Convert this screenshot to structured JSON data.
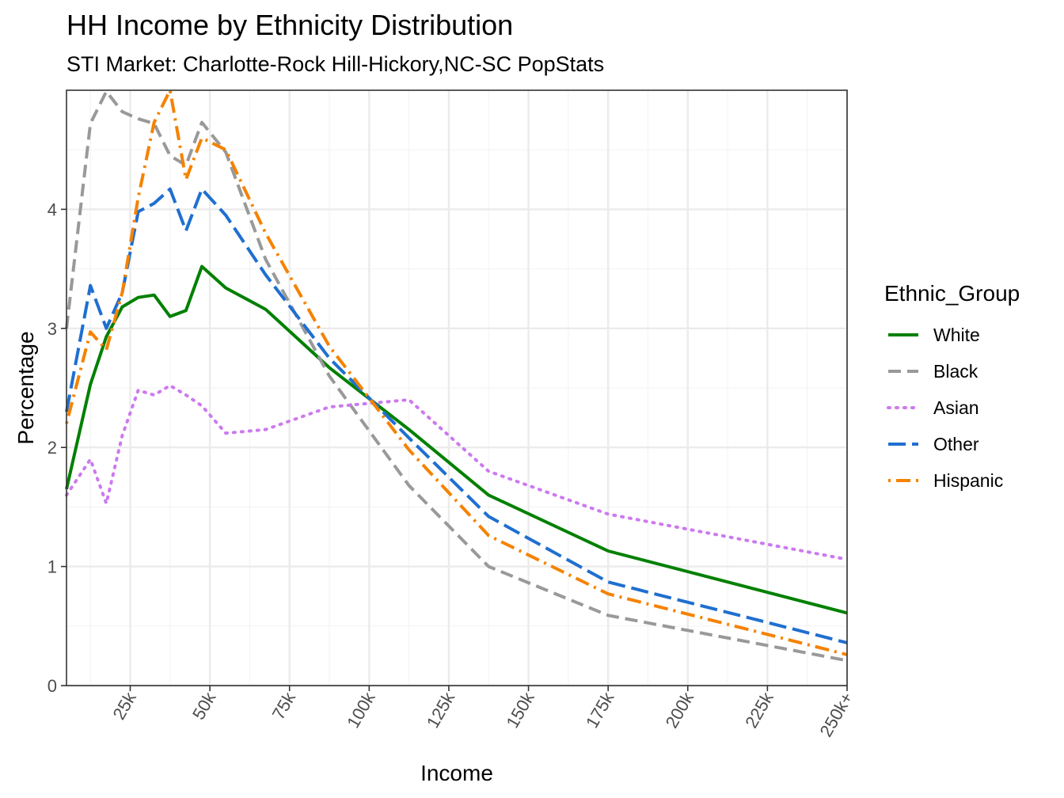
{
  "chart_data": {
    "type": "line",
    "title": "HH Income by Ethnicity Distribution",
    "subtitle": "STI Market: Charlotte-Rock Hill-Hickory,NC-SC PopStats",
    "xlabel": "Income",
    "ylabel": "Percentage",
    "xlim": [
      5,
      250
    ],
    "ylim": [
      0,
      5
    ],
    "x_ticks": [
      {
        "value": 25,
        "label": "25k"
      },
      {
        "value": 50,
        "label": "50k"
      },
      {
        "value": 75,
        "label": "75k"
      },
      {
        "value": 100,
        "label": "100k"
      },
      {
        "value": 125,
        "label": "125k"
      },
      {
        "value": 150,
        "label": "150k"
      },
      {
        "value": 175,
        "label": "175k"
      },
      {
        "value": 200,
        "label": "200k"
      },
      {
        "value": 225,
        "label": "225k"
      },
      {
        "value": 250,
        "label": "250k+"
      }
    ],
    "y_ticks": [
      0,
      1,
      2,
      3,
      4
    ],
    "grid": true,
    "legend": {
      "title": "Ethnic_Group",
      "position": "right"
    },
    "x": [
      5,
      12.5,
      17.5,
      22.5,
      27.5,
      32.5,
      37.5,
      42.5,
      47.5,
      55,
      67.5,
      87.5,
      112.5,
      137.5,
      175,
      250
    ],
    "series": [
      {
        "name": "White",
        "color": "#008000",
        "dash": "solid",
        "values": [
          1.65,
          2.53,
          2.93,
          3.18,
          3.26,
          3.28,
          3.1,
          3.15,
          3.52,
          3.34,
          3.16,
          2.67,
          2.15,
          1.6,
          1.13,
          0.61
        ]
      },
      {
        "name": "Black",
        "color": "#999999",
        "dash": "dashed",
        "values": [
          3.0,
          4.72,
          4.99,
          4.82,
          4.76,
          4.72,
          4.45,
          4.37,
          4.73,
          4.48,
          3.58,
          2.6,
          1.68,
          1.0,
          0.59,
          0.21
        ]
      },
      {
        "name": "Asian",
        "color": "#cc79f0",
        "dash": "dotted",
        "values": [
          1.6,
          1.9,
          1.53,
          2.1,
          2.48,
          2.44,
          2.52,
          2.44,
          2.35,
          2.12,
          2.15,
          2.34,
          2.4,
          1.8,
          1.44,
          1.06
        ]
      },
      {
        "name": "Other",
        "color": "#1f6fd0",
        "dash": "longdash",
        "values": [
          2.3,
          3.36,
          3.0,
          3.3,
          3.98,
          4.05,
          4.17,
          3.82,
          4.17,
          3.95,
          3.45,
          2.75,
          2.08,
          1.42,
          0.87,
          0.36
        ]
      },
      {
        "name": "Hispanic",
        "color": "#f58200",
        "dash": "dotdash",
        "values": [
          2.2,
          2.97,
          2.82,
          3.3,
          4.1,
          4.73,
          5.0,
          4.25,
          4.6,
          4.5,
          3.8,
          2.85,
          1.98,
          1.26,
          0.77,
          0.26
        ]
      }
    ]
  }
}
